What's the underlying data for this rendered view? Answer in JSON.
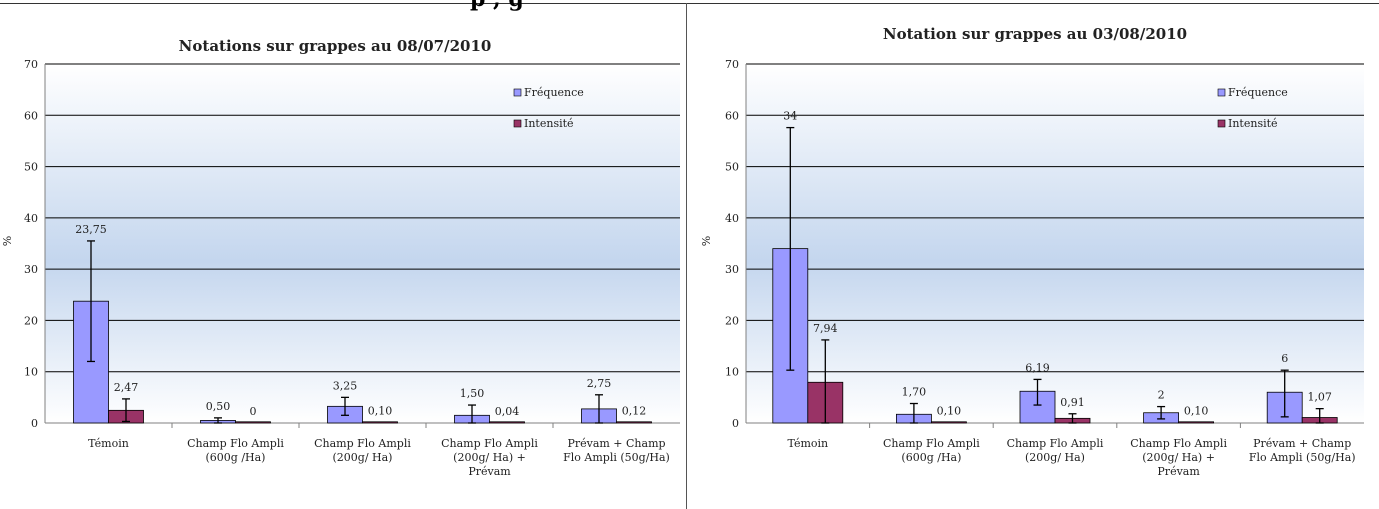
{
  "header_fragment": "p          ,   g",
  "colors": {
    "frequence": "#9999ff",
    "intensite": "#993366",
    "grid": "#000000"
  },
  "chart_data": [
    {
      "type": "bar",
      "title": "Notations sur grappes au 08/07/2010",
      "xlabel": "",
      "ylabel": "%",
      "ylim": [
        0,
        70
      ],
      "yticks": [
        "0",
        "10",
        "20",
        "30",
        "40",
        "50",
        "60",
        "70"
      ],
      "grid": true,
      "legend": "top-right",
      "categories": [
        [
          "Témoin"
        ],
        [
          "Champ Flo Ampli",
          "(600g /Ha)"
        ],
        [
          "Champ Flo Ampli",
          "(200g/ Ha)"
        ],
        [
          "Champ Flo Ampli",
          "(200g/ Ha) +",
          "Prévam"
        ],
        [
          "Prévam + Champ",
          "Flo Ampli (50g/Ha)"
        ]
      ],
      "series": [
        {
          "name": "Fréquence",
          "values": [
            23.75,
            0.5,
            3.25,
            1.5,
            2.75
          ],
          "labels": [
            "23,75",
            "0,50",
            "3,25",
            "1,50",
            "2,75"
          ],
          "err_low": [
            12,
            0,
            1.5,
            0,
            0
          ],
          "err_high": [
            35.5,
            1,
            5,
            3.5,
            5.5
          ]
        },
        {
          "name": "Intensité",
          "values": [
            2.47,
            0,
            0.1,
            0.04,
            0.12
          ],
          "labels": [
            "2,47",
            "0",
            "0,10",
            "0,04",
            "0,12"
          ],
          "err_low": [
            0.3,
            0,
            0,
            0,
            0
          ],
          "err_high": [
            4.7,
            0,
            0,
            0,
            0
          ]
        }
      ]
    },
    {
      "type": "bar",
      "title": "Notation sur grappes au 03/08/2010",
      "xlabel": "",
      "ylabel": "%",
      "ylim": [
        0,
        70
      ],
      "yticks": [
        "0",
        "10",
        "20",
        "30",
        "40",
        "50",
        "60",
        "70"
      ],
      "grid": true,
      "legend": "top-right",
      "categories": [
        [
          "Témoin"
        ],
        [
          "Champ Flo Ampli",
          "(600g /Ha)"
        ],
        [
          "Champ Flo Ampli",
          "(200g/ Ha)"
        ],
        [
          "Champ Flo Ampli",
          "(200g/ Ha) +",
          "Prévam"
        ],
        [
          "Prévam + Champ",
          "Flo Ampli (50g/Ha)"
        ]
      ],
      "series": [
        {
          "name": "Fréquence",
          "values": [
            34,
            1.7,
            6.19,
            2,
            6
          ],
          "labels": [
            "34",
            "1,70",
            "6,19",
            "2",
            "6"
          ],
          "err_low": [
            10.3,
            0,
            3.5,
            0.8,
            1.2
          ],
          "err_high": [
            57.6,
            3.8,
            8.5,
            3.2,
            10.3
          ]
        },
        {
          "name": "Intensité",
          "values": [
            7.94,
            0.1,
            0.91,
            0.1,
            1.07
          ],
          "labels": [
            "7,94",
            "0,10",
            "0,91",
            "0,10",
            "1,07"
          ],
          "err_low": [
            0,
            0,
            0,
            0,
            0
          ],
          "err_high": [
            16.2,
            0,
            1.8,
            0,
            2.8
          ]
        }
      ]
    }
  ]
}
